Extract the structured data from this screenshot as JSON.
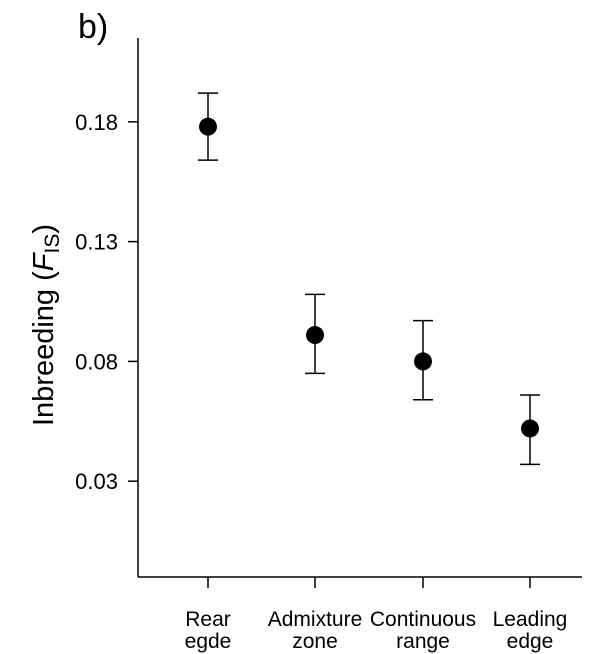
{
  "chart_data": {
    "type": "scatter",
    "panel_label": "b)",
    "ylabel": {
      "prefix": "Inbreeding (",
      "symbol": "F",
      "subscript": "IS",
      "suffix": ")"
    },
    "ylim": [
      -0.01,
      0.215
    ],
    "yticks": [
      0.03,
      0.08,
      0.13,
      0.18
    ],
    "ytick_labels": [
      "0.03",
      "0.08",
      "0.13",
      "0.18"
    ],
    "categories": [
      [
        "Rear",
        "egde"
      ],
      [
        "Admixture",
        "zone"
      ],
      [
        "Continuous",
        "range"
      ],
      [
        "Leading",
        "edge"
      ]
    ],
    "points": [
      {
        "y": 0.178,
        "lower": 0.164,
        "upper": 0.192
      },
      {
        "y": 0.091,
        "lower": 0.075,
        "upper": 0.108
      },
      {
        "y": 0.08,
        "lower": 0.064,
        "upper": 0.097
      },
      {
        "y": 0.052,
        "lower": 0.037,
        "upper": 0.066
      }
    ],
    "marker_color": "#000000",
    "grid": false,
    "legend": "none"
  }
}
